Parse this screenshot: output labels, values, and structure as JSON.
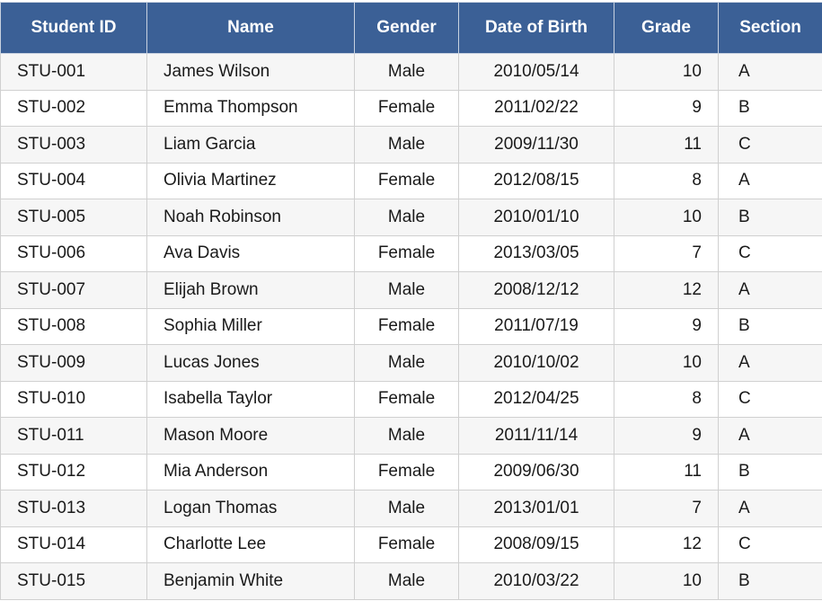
{
  "table": {
    "columns": [
      "Student ID",
      "Name",
      "Gender",
      "Date of Birth",
      "Grade",
      "Section"
    ],
    "rows": [
      [
        "STU-001",
        "James Wilson",
        "Male",
        "2010/05/14",
        10,
        "A"
      ],
      [
        "STU-002",
        "Emma Thompson",
        "Female",
        "2011/02/22",
        9,
        "B"
      ],
      [
        "STU-003",
        "Liam Garcia",
        "Male",
        "2009/11/30",
        11,
        "C"
      ],
      [
        "STU-004",
        "Olivia Martinez",
        "Female",
        "2012/08/15",
        8,
        "A"
      ],
      [
        "STU-005",
        "Noah Robinson",
        "Male",
        "2010/01/10",
        10,
        "B"
      ],
      [
        "STU-006",
        "Ava Davis",
        "Female",
        "2013/03/05",
        7,
        "C"
      ],
      [
        "STU-007",
        "Elijah Brown",
        "Male",
        "2008/12/12",
        12,
        "A"
      ],
      [
        "STU-008",
        "Sophia Miller",
        "Female",
        "2011/07/19",
        9,
        "B"
      ],
      [
        "STU-009",
        "Lucas Jones",
        "Male",
        "2010/10/02",
        10,
        "A"
      ],
      [
        "STU-010",
        "Isabella Taylor",
        "Female",
        "2012/04/25",
        8,
        "C"
      ],
      [
        "STU-011",
        "Mason Moore",
        "Male",
        "2011/11/14",
        9,
        "A"
      ],
      [
        "STU-012",
        "Mia Anderson",
        "Female",
        "2009/06/30",
        11,
        "B"
      ],
      [
        "STU-013",
        "Logan Thomas",
        "Male",
        "2013/01/01",
        7,
        "A"
      ],
      [
        "STU-014",
        "Charlotte Lee",
        "Female",
        "2008/09/15",
        12,
        "C"
      ],
      [
        "STU-015",
        "Benjamin White",
        "Male",
        "2010/03/22",
        10,
        "B"
      ]
    ]
  }
}
